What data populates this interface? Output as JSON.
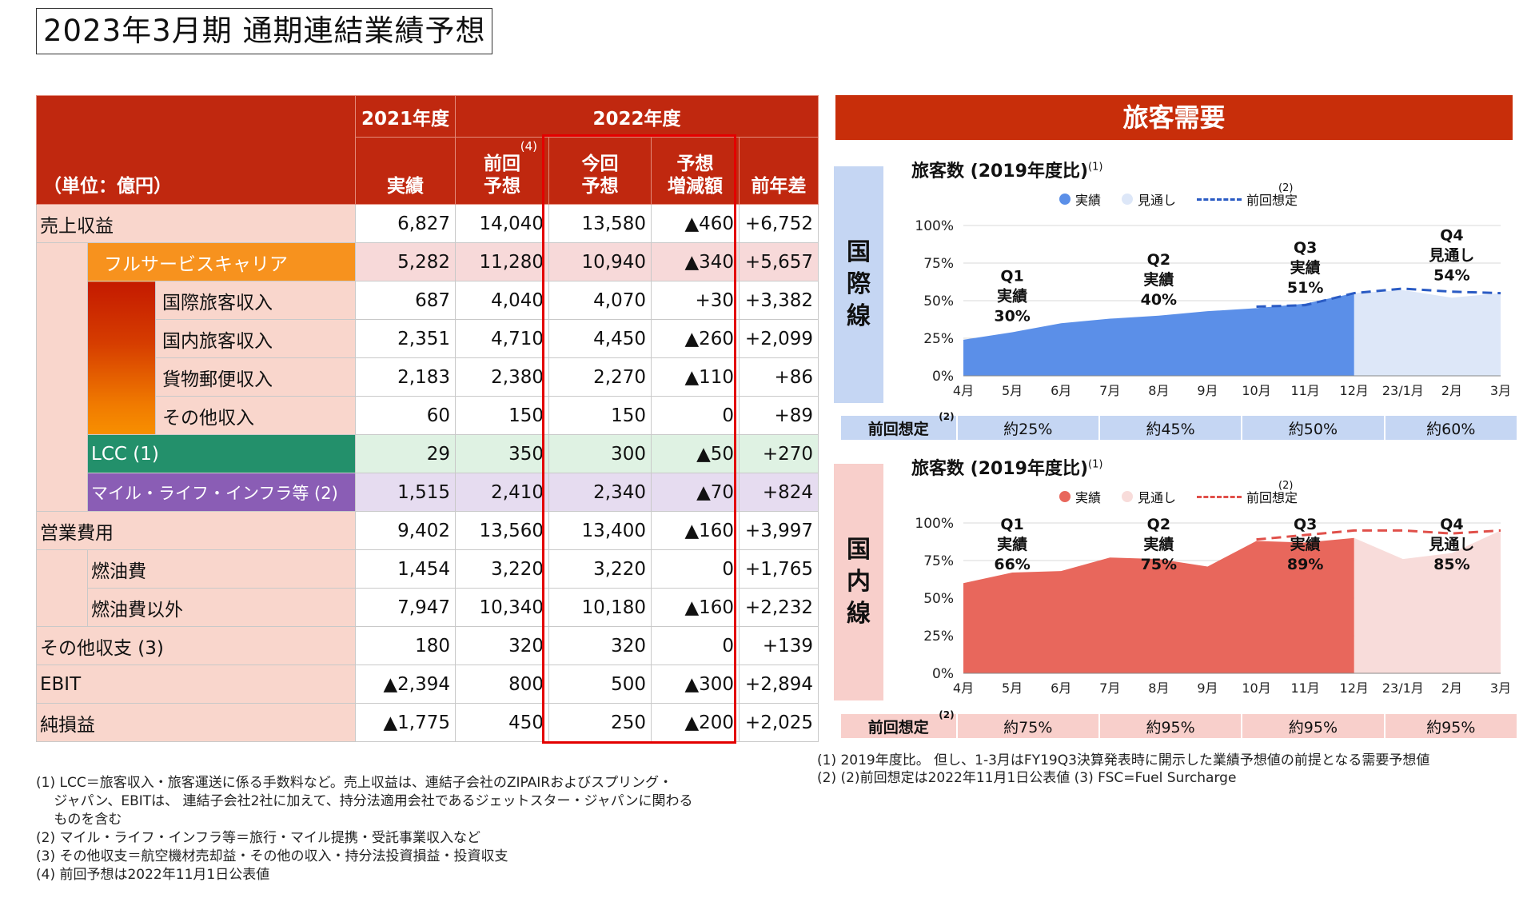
{
  "title": "2023年3月期  通期連結業績予想",
  "table": {
    "unit_label": "（単位：億円）",
    "year_2021": "2021年度",
    "year_2022": "2022年度",
    "col_actual": "実績",
    "col_prev": "前回\n予想",
    "col_prev_note": "(4)",
    "col_current": "今回\n予想",
    "col_change": "予想\n増減額",
    "col_yoy": "前年差",
    "rows": [
      {
        "label": "売上収益",
        "actual": "6,827",
        "prev": "14,040",
        "current": "13,580",
        "change": "▲460",
        "yoy": "+6,752"
      },
      {
        "label": "フルサービスキャリア",
        "actual": "5,282",
        "prev": "11,280",
        "current": "10,940",
        "change": "▲340",
        "yoy": "+5,657"
      },
      {
        "label": "国際旅客収入",
        "actual": "687",
        "prev": "4,040",
        "current": "4,070",
        "change": "+30",
        "yoy": "+3,382"
      },
      {
        "label": "国内旅客収入",
        "actual": "2,351",
        "prev": "4,710",
        "current": "4,450",
        "change": "▲260",
        "yoy": "+2,099"
      },
      {
        "label": "貨物郵便収入",
        "actual": "2,183",
        "prev": "2,380",
        "current": "2,270",
        "change": "▲110",
        "yoy": "+86"
      },
      {
        "label": "その他収入",
        "actual": "60",
        "prev": "150",
        "current": "150",
        "change": "0",
        "yoy": "+89"
      },
      {
        "label": "LCC (1)",
        "actual": "29",
        "prev": "350",
        "current": "300",
        "change": "▲50",
        "yoy": "+270"
      },
      {
        "label": "マイル・ライフ・インフラ等 (2)",
        "actual": "1,515",
        "prev": "2,410",
        "current": "2,340",
        "change": "▲70",
        "yoy": "+824"
      },
      {
        "label": "営業費用",
        "actual": "9,402",
        "prev": "13,560",
        "current": "13,400",
        "change": "▲160",
        "yoy": "+3,997"
      },
      {
        "label": "燃油費",
        "actual": "1,454",
        "prev": "3,220",
        "current": "3,220",
        "change": "0",
        "yoy": "+1,765"
      },
      {
        "label": "燃油費以外",
        "actual": "7,947",
        "prev": "10,340",
        "current": "10,180",
        "change": "▲160",
        "yoy": "+2,232"
      },
      {
        "label": "その他収支 (3)",
        "actual": "180",
        "prev": "320",
        "current": "320",
        "change": "0",
        "yoy": "+139"
      },
      {
        "label": "EBIT",
        "actual": "▲2,394",
        "prev": "800",
        "current": "500",
        "change": "▲300",
        "yoy": "+2,894"
      },
      {
        "label": "純損益",
        "actual": "▲1,775",
        "prev": "450",
        "current": "250",
        "change": "▲200",
        "yoy": "+2,025"
      }
    ]
  },
  "notes_left": [
    "(1) LCC＝旅客収入・旅客運送に係る手数料など。売上収益は、連結子会社のZIPAIRおよびスプリング・",
    "　  ジャパン、EBITは、 連結子会社2社に加えて、持分法適用会社であるジェットスター・ジャパンに関わる",
    "　  ものを含む",
    "(2) マイル・ライフ・インフラ等＝旅行・マイル提携・受託事業収入など",
    "(3) その他収支＝航空機材売却益・その他の収入・持分法投資損益・投資収支",
    "(4) 前回予想は2022年11月1日公表値"
  ],
  "demand": {
    "banner": "旅客需要",
    "chart_title": "旅客数 (2019年度比)",
    "chart_title_note": "(1)",
    "legend_actual": "実績",
    "legend_forecast": "見通し",
    "legend_prev": "前回想定",
    "legend_prev_note": "(2)",
    "prev_label": "前回想定",
    "prev_label_note": "(2)",
    "intl_region": [
      "国",
      "際",
      "線"
    ],
    "dom_region": [
      "国",
      "内",
      "線"
    ],
    "intl_prev": [
      "約25%",
      "約45%",
      "約50%",
      "約60%"
    ],
    "dom_prev": [
      "約75%",
      "約95%",
      "約95%",
      "約95%"
    ],
    "intl_q": [
      {
        "q": "Q1",
        "kind": "実績",
        "val": "30%"
      },
      {
        "q": "Q2",
        "kind": "実績",
        "val": "40%"
      },
      {
        "q": "Q3",
        "kind": "実績",
        "val": "51%"
      },
      {
        "q": "Q4",
        "kind": "見通し",
        "val": "54%"
      }
    ],
    "dom_q": [
      {
        "q": "Q1",
        "kind": "実績",
        "val": "66%"
      },
      {
        "q": "Q2",
        "kind": "実績",
        "val": "75%"
      },
      {
        "q": "Q3",
        "kind": "実績",
        "val": "89%"
      },
      {
        "q": "Q4",
        "kind": "見通し",
        "val": "85%"
      }
    ],
    "colors": {
      "intl_actual": "#5b8fe8",
      "intl_forecast": "#dde7f8",
      "intl_prev": "#2a5bc4",
      "intl_panel": "#c5d6f3",
      "dom_actual": "#e8675c",
      "dom_forecast": "#f8dcda",
      "dom_prev": "#e0504a",
      "dom_panel": "#f8cfcb"
    }
  },
  "chart_data": [
    {
      "type": "area",
      "title": "旅客数 (2019年度比)",
      "x": [
        "4月",
        "5月",
        "6月",
        "7月",
        "8月",
        "9月",
        "10月",
        "11月",
        "12月",
        "23/1月",
        "2月",
        "3月"
      ],
      "ylim": [
        0,
        100
      ],
      "yticks": [
        "0%",
        "25%",
        "50%",
        "75%",
        "100%"
      ],
      "series": [
        {
          "name": "実績",
          "values": [
            24,
            29,
            35,
            38,
            40,
            43,
            45,
            48,
            55,
            null,
            null,
            null
          ]
        },
        {
          "name": "見通し",
          "values": [
            null,
            null,
            null,
            null,
            null,
            null,
            null,
            null,
            55,
            57,
            52,
            55
          ]
        },
        {
          "name": "前回想定",
          "values": [
            null,
            null,
            null,
            null,
            null,
            null,
            46,
            47,
            55,
            58,
            56,
            55
          ]
        }
      ]
    },
    {
      "type": "area",
      "title": "旅客数 (2019年度比)",
      "x": [
        "4月",
        "5月",
        "6月",
        "7月",
        "8月",
        "9月",
        "10月",
        "11月",
        "12月",
        "23/1月",
        "2月",
        "3月"
      ],
      "ylim": [
        0,
        100
      ],
      "yticks": [
        "0%",
        "25%",
        "50%",
        "75%",
        "100%"
      ],
      "series": [
        {
          "name": "実績",
          "values": [
            60,
            67,
            68,
            77,
            76,
            71,
            88,
            87,
            90,
            null,
            null,
            null
          ]
        },
        {
          "name": "見通し",
          "values": [
            null,
            null,
            null,
            null,
            null,
            null,
            null,
            null,
            90,
            76,
            80,
            95
          ]
        },
        {
          "name": "前回想定",
          "values": [
            null,
            null,
            null,
            null,
            null,
            null,
            89,
            92,
            95,
            95,
            93,
            95
          ]
        }
      ]
    }
  ],
  "notes_right": [
    "(1) 2019年度比。 但し、1-3月はFY19Q3決算発表時に開示した業績予想値の前提となる需要予想値",
    "(2) (2)前回想定は2022年11月1日公表値  (3) FSC=Fuel Surcharge"
  ]
}
